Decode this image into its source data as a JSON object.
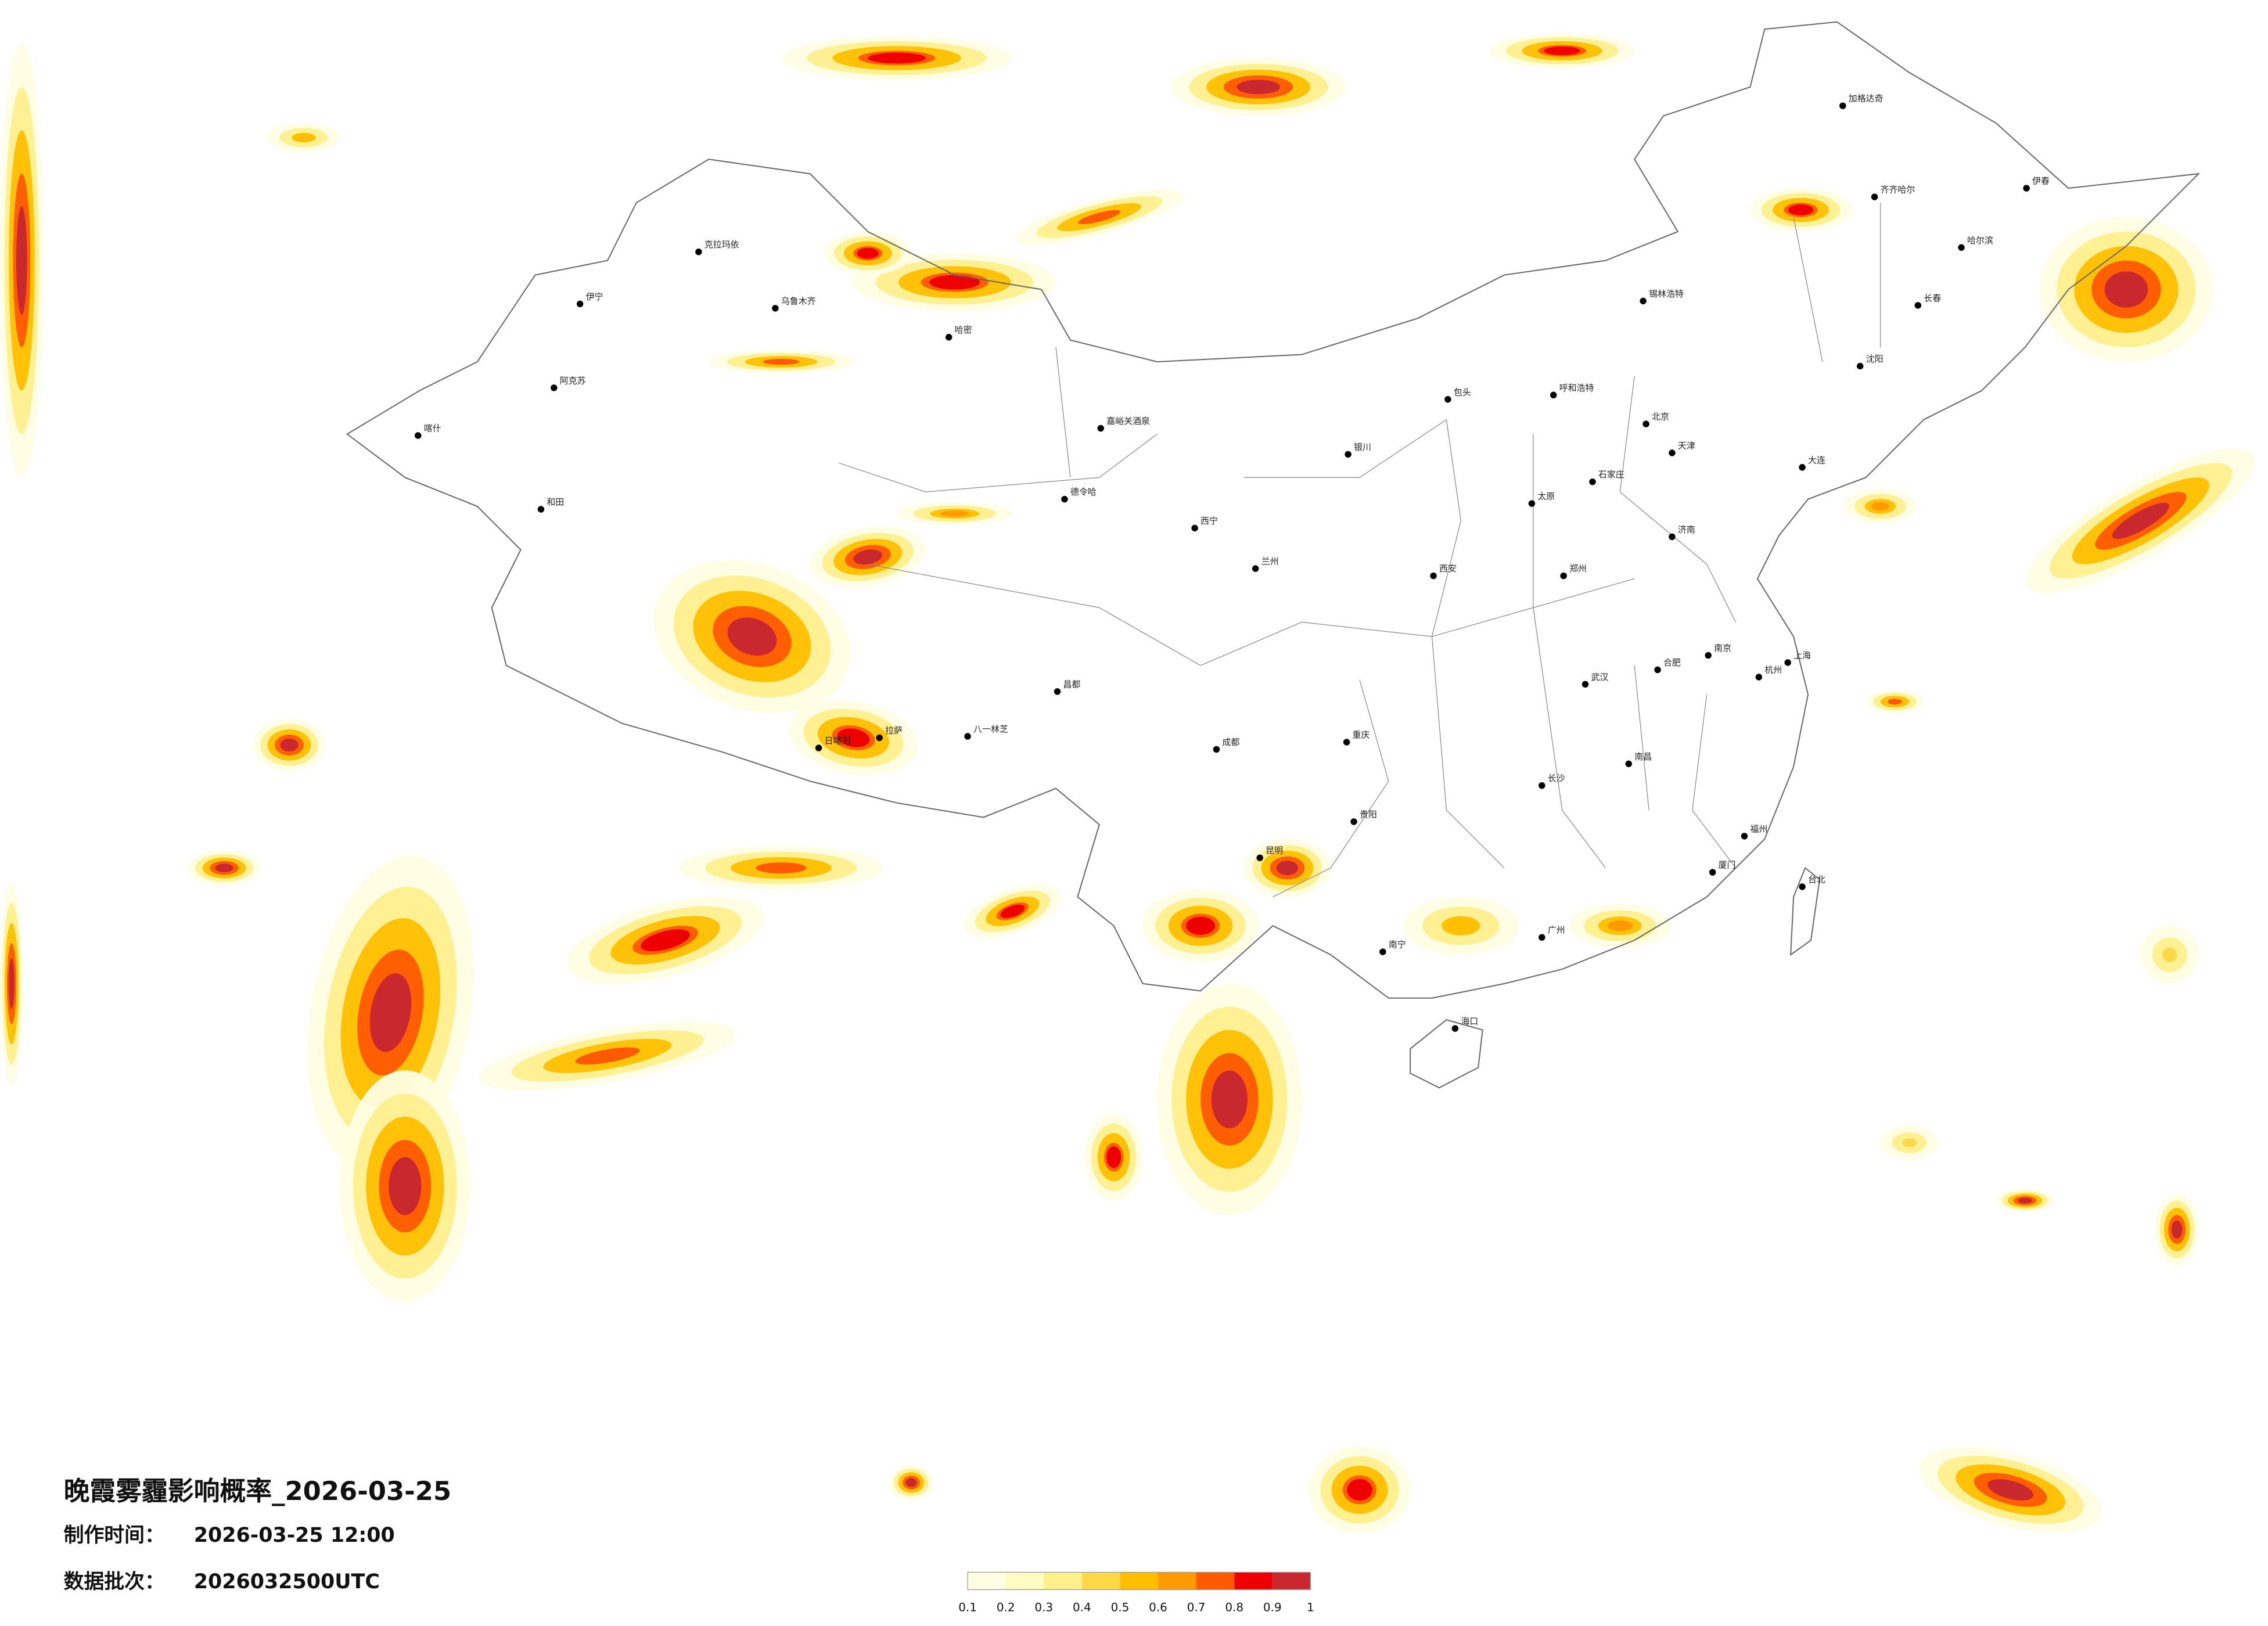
{
  "map": {
    "title": "晚霞雾霾影响概率_2026-03-25",
    "info": [
      {
        "label": "制作时间：",
        "value": "2026-03-25 12:00"
      },
      {
        "label": "数据批次：",
        "value": "2026032500UTC"
      }
    ],
    "colorbar": {
      "ticks": [
        0.1,
        0.2,
        0.3,
        0.4,
        0.5,
        0.6,
        0.7,
        0.8,
        0.9,
        1
      ],
      "colors": [
        "#fffde2",
        "#fffbc2",
        "#fff08e",
        "#ffd84a",
        "#ffbf00",
        "#ff9a00",
        "#ff5a00",
        "#ee0000",
        "#c8282e"
      ]
    },
    "cities": [
      "克拉玛依",
      "伊宁",
      "阿克苏",
      "和田",
      "喀什",
      "乌鲁木齐",
      "哈密",
      "嘉峪关酒泉",
      "德令哈",
      "拉萨",
      "日喀则",
      "八一林芝",
      "昌都",
      "西宁",
      "兰州",
      "银川",
      "包头",
      "呼和浩特",
      "北京",
      "天津",
      "石家庄",
      "太原",
      "济南",
      "郑州",
      "西安",
      "成都",
      "重庆",
      "武汉",
      "长沙",
      "南昌",
      "杭州",
      "上海",
      "南京",
      "合肥",
      "福州",
      "厦门",
      "广州",
      "南宁",
      "昆明",
      "贵阳",
      "海口",
      "台北",
      "哈尔滨",
      "长春",
      "沈阳",
      "大连",
      "齐齐哈尔",
      "加格达奇",
      "锡林浩特",
      "伊春"
    ]
  }
}
